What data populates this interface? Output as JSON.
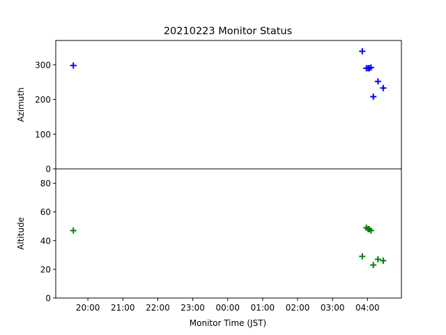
{
  "chart_data": {
    "type": "scatter",
    "title": "20210223 Monitor Status",
    "xlabel": "Monitor Time (JST)",
    "x_ticks": [
      "20:00",
      "21:00",
      "22:00",
      "23:00",
      "00:00",
      "01:00",
      "02:00",
      "03:00",
      "04:00"
    ],
    "x_tick_hours": [
      20,
      21,
      22,
      23,
      24,
      25,
      26,
      27,
      28
    ],
    "xlim_hours": [
      19.08,
      28.97
    ],
    "grid": false,
    "panels": [
      {
        "name": "azimuth",
        "ylabel": "Azimuth",
        "ylim": [
          0,
          370
        ],
        "yticks": [
          0,
          100,
          200,
          300
        ],
        "color": "#0000ff",
        "marker": "plus",
        "points": [
          {
            "x": "19:35",
            "y": 298
          },
          {
            "x": "03:51",
            "y": 339
          },
          {
            "x": "03:58",
            "y": 290
          },
          {
            "x": "04:01",
            "y": 290
          },
          {
            "x": "04:03",
            "y": 290
          },
          {
            "x": "04:06",
            "y": 292
          },
          {
            "x": "04:10",
            "y": 208
          },
          {
            "x": "04:18",
            "y": 252
          },
          {
            "x": "04:27",
            "y": 233
          }
        ]
      },
      {
        "name": "altitude",
        "ylabel": "Altitude",
        "ylim": [
          0,
          90
        ],
        "yticks": [
          0,
          20,
          40,
          60,
          80
        ],
        "color": "#008000",
        "marker": "plus",
        "points": [
          {
            "x": "19:35",
            "y": 47
          },
          {
            "x": "03:51",
            "y": 29
          },
          {
            "x": "03:58",
            "y": 49
          },
          {
            "x": "04:01",
            "y": 48
          },
          {
            "x": "04:03",
            "y": 48
          },
          {
            "x": "04:06",
            "y": 47
          },
          {
            "x": "04:10",
            "y": 23
          },
          {
            "x": "04:18",
            "y": 27
          },
          {
            "x": "04:27",
            "y": 26
          }
        ]
      }
    ]
  }
}
